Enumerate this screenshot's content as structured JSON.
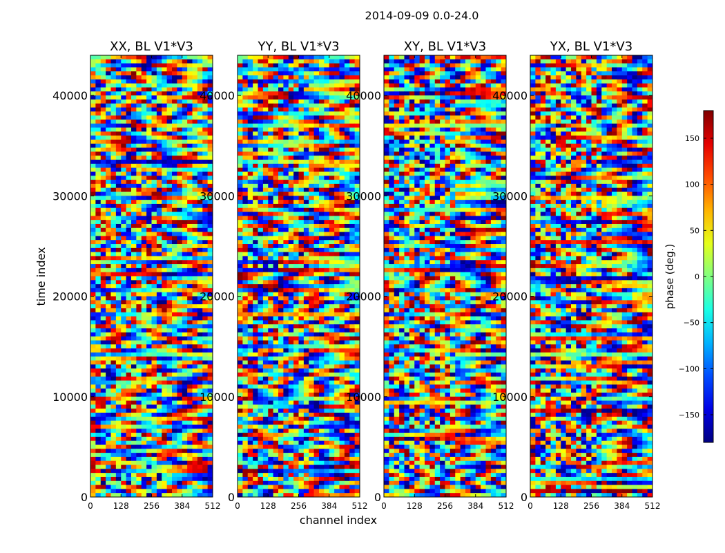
{
  "figure_title": "2014-09-09 0.0-24.0",
  "shared_axes": {
    "xlabel": "channel index",
    "ylabel": "time index",
    "xlim": [
      0,
      512
    ],
    "ylim": [
      0,
      44000
    ],
    "x_ticks": [
      0,
      128,
      256,
      384,
      512
    ],
    "y_ticks": [
      0,
      10000,
      20000,
      30000,
      40000
    ]
  },
  "chart_data": [
    {
      "type": "heatmap",
      "title": "XX, BL V1*V3",
      "xlabel": "channel index",
      "ylabel": "time index",
      "xlim": [
        0,
        512
      ],
      "ylim": [
        0,
        44000
      ],
      "x_ticks": [
        0,
        128,
        256,
        384,
        512
      ],
      "y_ticks": [
        0,
        10000,
        20000,
        30000,
        40000
      ],
      "value_range": [
        -180,
        180
      ]
    },
    {
      "type": "heatmap",
      "title": "YY, BL V1*V3",
      "xlabel": "channel index",
      "ylabel": "time index",
      "xlim": [
        0,
        512
      ],
      "ylim": [
        0,
        44000
      ],
      "x_ticks": [
        0,
        128,
        256,
        384,
        512
      ],
      "y_ticks": [
        0,
        10000,
        20000,
        30000,
        40000
      ],
      "value_range": [
        -180,
        180
      ]
    },
    {
      "type": "heatmap",
      "title": "XY, BL V1*V3",
      "xlabel": "channel index",
      "ylabel": "time index",
      "xlim": [
        0,
        512
      ],
      "ylim": [
        0,
        44000
      ],
      "x_ticks": [
        0,
        128,
        256,
        384,
        512
      ],
      "y_ticks": [
        0,
        10000,
        20000,
        30000,
        40000
      ],
      "value_range": [
        -180,
        180
      ]
    },
    {
      "type": "heatmap",
      "title": "YX, BL V1*V3",
      "xlabel": "channel index",
      "ylabel": "time index",
      "xlim": [
        0,
        512
      ],
      "ylim": [
        0,
        44000
      ],
      "x_ticks": [
        0,
        128,
        256,
        384,
        512
      ],
      "y_ticks": [
        0,
        10000,
        20000,
        30000,
        40000
      ],
      "value_range": [
        -180,
        180
      ]
    }
  ],
  "colorbar": {
    "label": "phase (deg.)",
    "range": [
      -180,
      180
    ],
    "ticks": [
      150,
      100,
      50,
      0,
      -50,
      -100,
      -150
    ],
    "tick_labels": [
      "150",
      "100",
      "50",
      "0",
      "−50",
      "−100",
      "−150"
    ],
    "colormap": "jet",
    "colors": [
      "#00007f",
      "#0000ff",
      "#007fff",
      "#00ffff",
      "#7fff7f",
      "#ffff00",
      "#ff7f00",
      "#ff0000",
      "#7f0000"
    ]
  }
}
